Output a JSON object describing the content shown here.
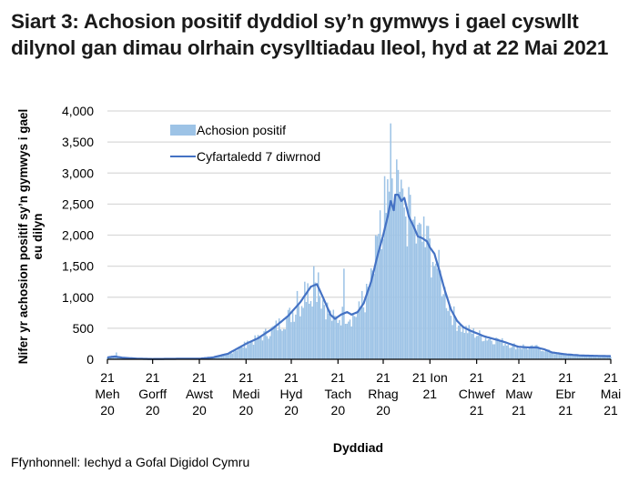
{
  "title": "Siart 3: Achosion positif dyddiol sy’n gymwys i gael cyswllt dilynol gan dimau olrhain cysylltiadau lleol, hyd at 22 Mai 2021",
  "source": "Ffynhonnell: Iechyd a Gofal Digidol Cymru",
  "colors": {
    "bars": "#9dc3e6",
    "line": "#4472c4",
    "grid": "#d9d9d9",
    "axis": "#000000"
  },
  "chart_data": {
    "type": "bar",
    "title": "Siart 3: Achosion positif dyddiol sy’n gymwys i gael cyswllt dilynol gan dimau olrhain cysylltiadau lleol, hyd at 22 Mai 2021",
    "xlabel": "Dyddiad",
    "ylabel": "Nifer yr achosion positif sy’n gymwys i gael eu dilyn",
    "ylim": [
      0,
      4000
    ],
    "yticks": [
      "0",
      "500",
      "1,000",
      "1,500",
      "2,000",
      "2,500",
      "3,000",
      "3,500",
      "4,000"
    ],
    "grid": true,
    "legend_position": "top-left inside",
    "legend": [
      "Achosion positif",
      "Cyfartaledd 7 diwrnod"
    ],
    "x_tick_labels": [
      [
        "21",
        "Meh",
        "20"
      ],
      [
        "21",
        "Gorff",
        "20"
      ],
      [
        "21",
        "Awst",
        "20"
      ],
      [
        "21",
        "Medi",
        "20"
      ],
      [
        "21",
        "Hyd",
        "20"
      ],
      [
        "21",
        "Tach",
        "20"
      ],
      [
        "21",
        "Rhag",
        "20"
      ],
      [
        "21 Ion",
        "21",
        ""
      ],
      [
        "21",
        "Chwef",
        "21"
      ],
      [
        "21",
        "Maw",
        "21"
      ],
      [
        "21",
        "Ebr",
        "21"
      ],
      [
        "21",
        "Mai",
        "21"
      ]
    ],
    "x_tick_day_index": [
      0,
      30,
      61,
      92,
      122,
      153,
      183,
      214,
      245,
      273,
      304,
      334
    ],
    "start_date": "21 Meh 20",
    "end_date": "22 Mai 21",
    "series": [
      {
        "name": "Cyfartaledd 7 diwrnod",
        "type": "line",
        "points_day_value": [
          [
            0,
            30
          ],
          [
            5,
            45
          ],
          [
            10,
            25
          ],
          [
            20,
            10
          ],
          [
            30,
            5
          ],
          [
            45,
            8
          ],
          [
            61,
            10
          ],
          [
            70,
            30
          ],
          [
            80,
            90
          ],
          [
            92,
            250
          ],
          [
            100,
            340
          ],
          [
            110,
            500
          ],
          [
            120,
            700
          ],
          [
            128,
            920
          ],
          [
            135,
            1170
          ],
          [
            139,
            1210
          ],
          [
            143,
            1000
          ],
          [
            148,
            720
          ],
          [
            151,
            650
          ],
          [
            155,
            720
          ],
          [
            159,
            760
          ],
          [
            162,
            720
          ],
          [
            166,
            760
          ],
          [
            170,
            900
          ],
          [
            175,
            1250
          ],
          [
            179,
            1650
          ],
          [
            183,
            2000
          ],
          [
            186,
            2300
          ],
          [
            188,
            2550
          ],
          [
            190,
            2400
          ],
          [
            191,
            2650
          ],
          [
            193,
            2650
          ],
          [
            195,
            2550
          ],
          [
            197,
            2600
          ],
          [
            200,
            2300
          ],
          [
            203,
            2150
          ],
          [
            206,
            1980
          ],
          [
            209,
            1950
          ],
          [
            212,
            1900
          ],
          [
            214,
            1800
          ],
          [
            217,
            1700
          ],
          [
            220,
            1450
          ],
          [
            224,
            1100
          ],
          [
            228,
            800
          ],
          [
            232,
            620
          ],
          [
            236,
            520
          ],
          [
            240,
            470
          ],
          [
            245,
            420
          ],
          [
            250,
            370
          ],
          [
            256,
            330
          ],
          [
            262,
            290
          ],
          [
            268,
            240
          ],
          [
            273,
            200
          ],
          [
            280,
            190
          ],
          [
            285,
            190
          ],
          [
            290,
            160
          ],
          [
            295,
            110
          ],
          [
            304,
            80
          ],
          [
            315,
            60
          ],
          [
            325,
            55
          ],
          [
            334,
            50
          ]
        ]
      },
      {
        "name": "Achosion positif",
        "type": "bar",
        "notable_points_day_value": [
          [
            3,
            60
          ],
          [
            6,
            110
          ],
          [
            93,
            300
          ],
          [
            126,
            1100
          ],
          [
            131,
            1250
          ],
          [
            137,
            1500
          ],
          [
            140,
            1400
          ],
          [
            157,
            1460
          ],
          [
            169,
            1100
          ],
          [
            178,
            2000
          ],
          [
            181,
            2400
          ],
          [
            184,
            2950
          ],
          [
            186,
            2900
          ],
          [
            188,
            3800
          ],
          [
            191,
            2650
          ],
          [
            193,
            3050
          ],
          [
            196,
            2750
          ],
          [
            198,
            2300
          ],
          [
            201,
            2650
          ],
          [
            204,
            2300
          ],
          [
            207,
            2200
          ],
          [
            210,
            2300
          ],
          [
            212,
            2150
          ],
          [
            217,
            1500
          ],
          [
            219,
            1460
          ],
          [
            223,
            1050
          ],
          [
            234,
            550
          ],
          [
            258,
            350
          ],
          [
            276,
            240
          ],
          [
            285,
            230
          ]
        ]
      }
    ]
  }
}
